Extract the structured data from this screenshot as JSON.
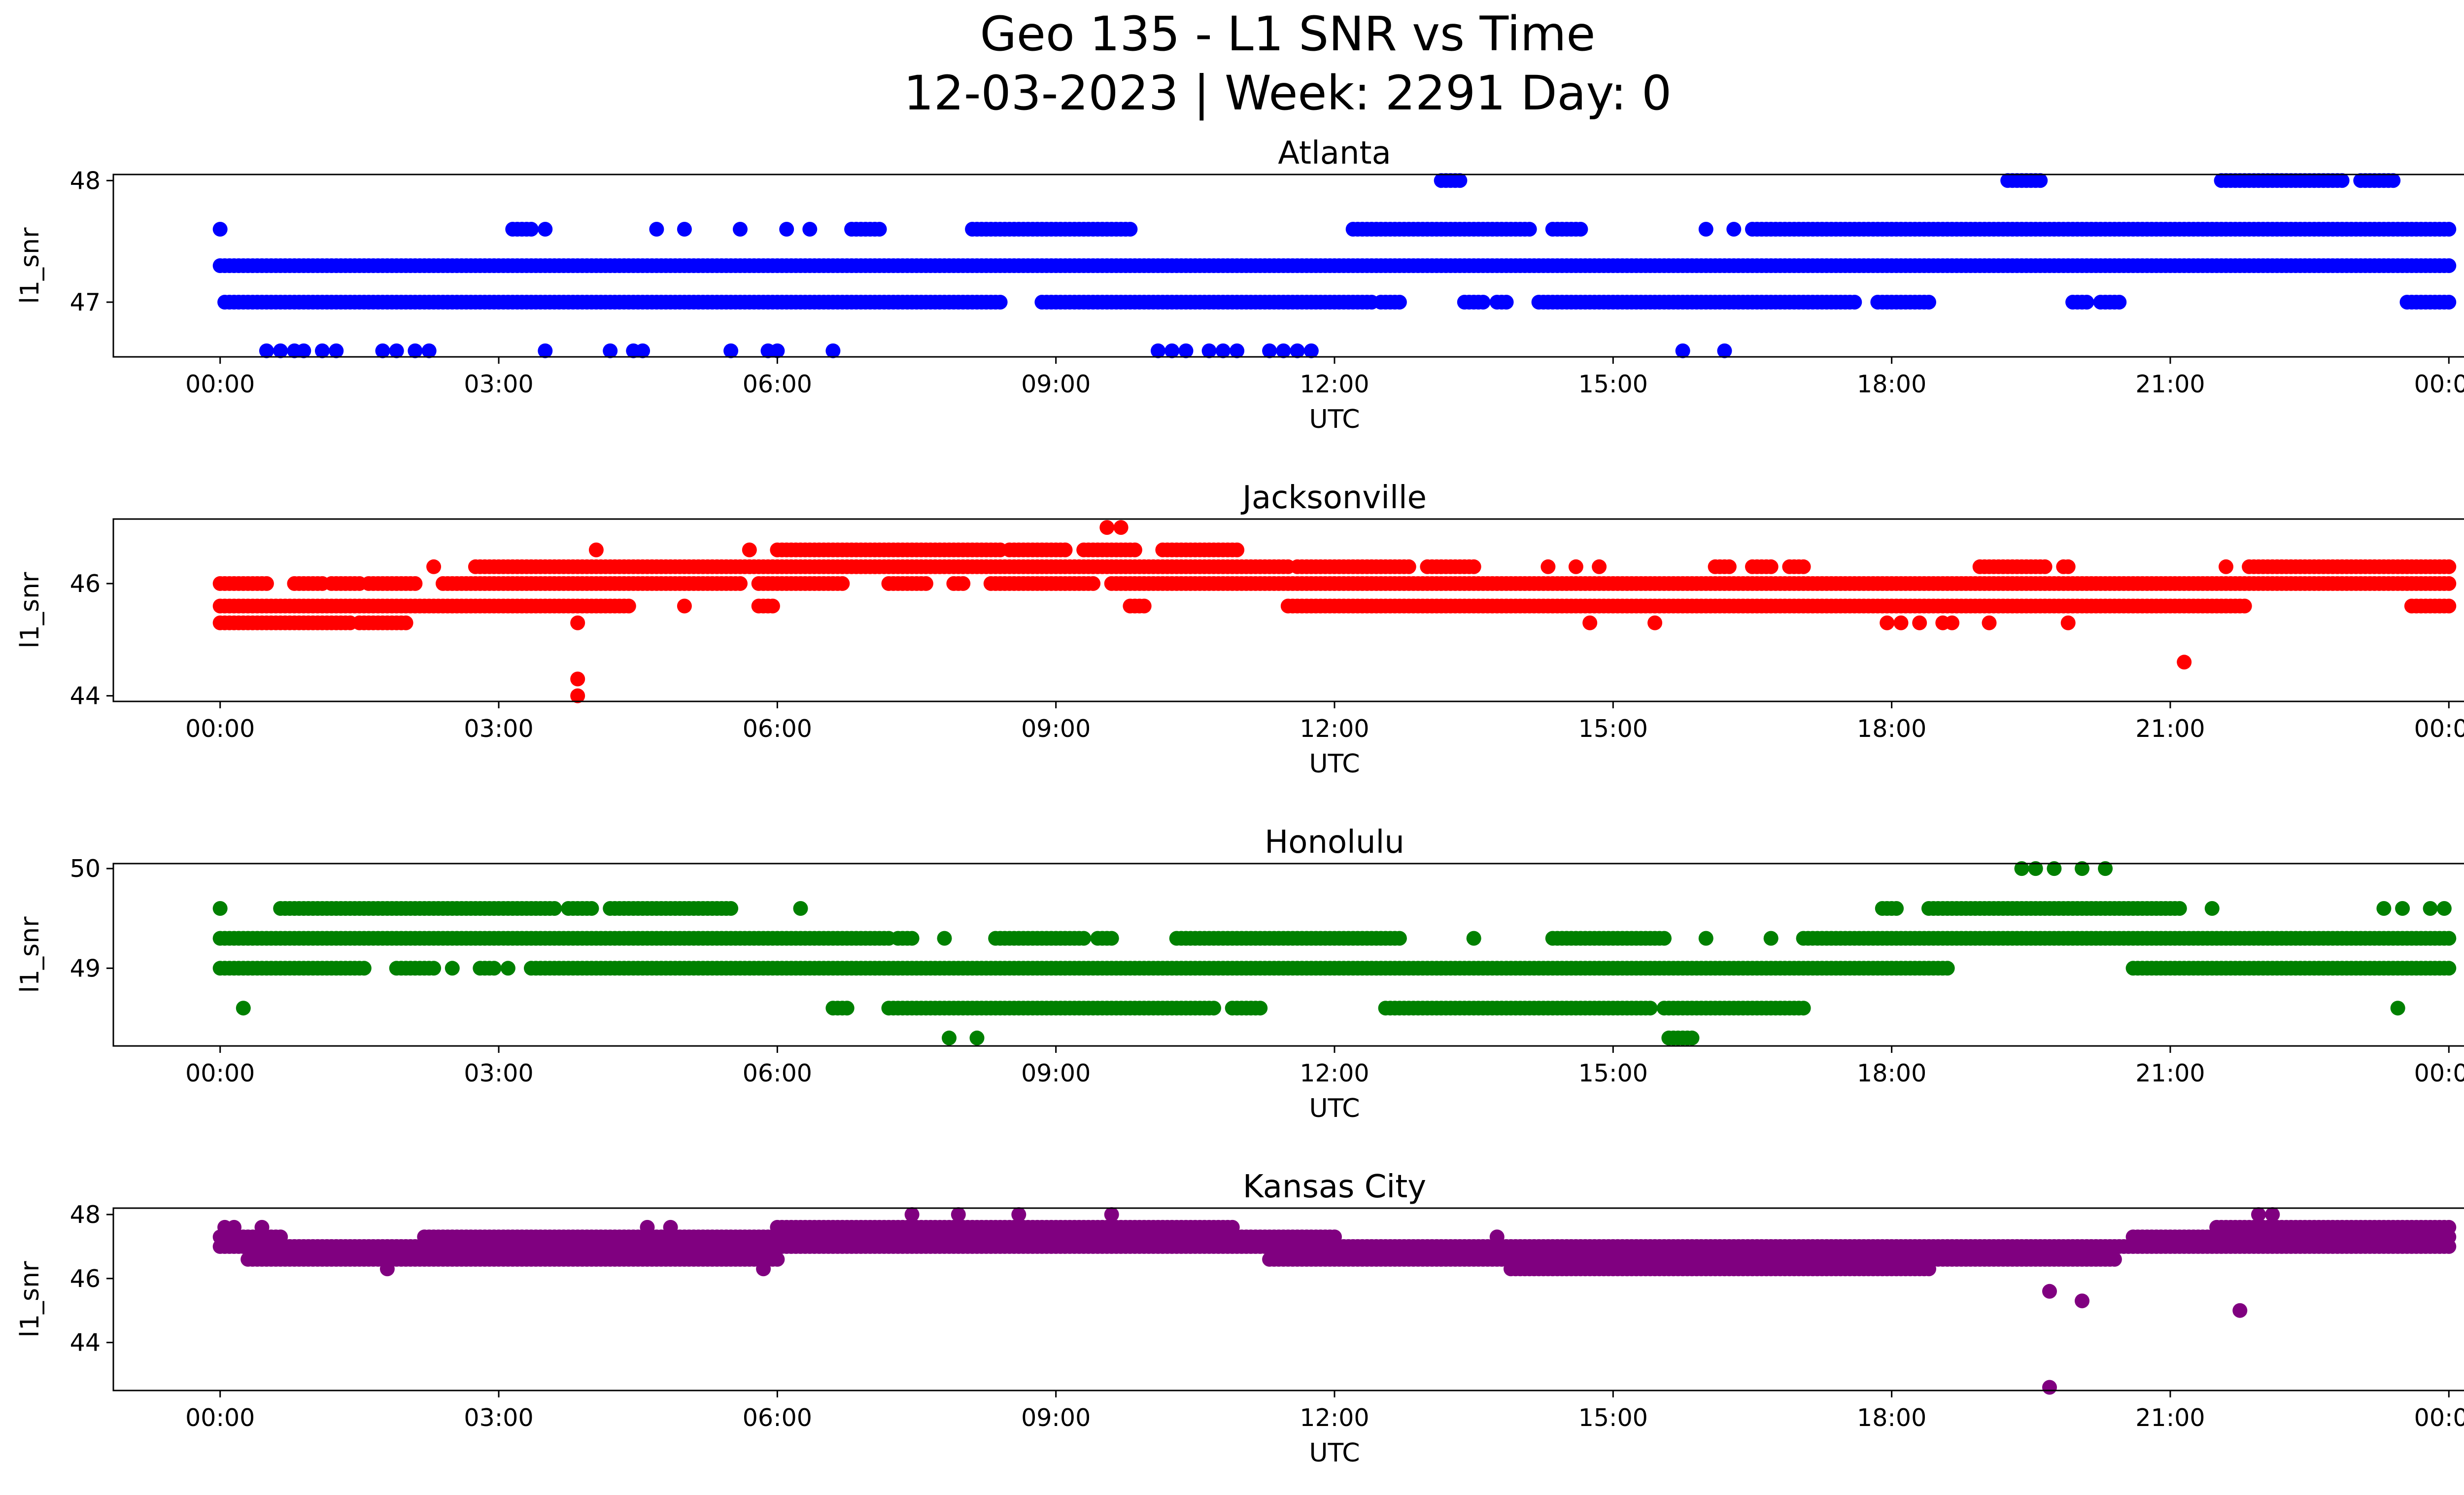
{
  "figure": {
    "title_line1": "Geo 135 - L1 SNR vs Time",
    "title_line2": "12-03-2023 | Week: 2291 Day: 0"
  },
  "chart_data": [
    {
      "type": "scatter",
      "title": "Atlanta",
      "xlabel": "UTC",
      "ylabel": "l1_snr",
      "color": "#0000ff",
      "xlim_hours": [
        -1.15,
        25.15
      ],
      "xticks": [
        "00:00",
        "03:00",
        "06:00",
        "09:00",
        "12:00",
        "15:00",
        "18:00",
        "21:00",
        "00:00"
      ],
      "ylim": [
        46.55,
        48.05
      ],
      "yticks": [
        47,
        48
      ],
      "segments": [
        {
          "y": 47.3,
          "from": 0.0,
          "to": 24.0
        },
        {
          "y": 47.0,
          "from": 0.05,
          "to": 8.4
        },
        {
          "y": 47.0,
          "from": 8.85,
          "to": 12.4
        },
        {
          "y": 47.0,
          "from": 12.5,
          "to": 12.7
        },
        {
          "y": 47.0,
          "from": 13.4,
          "to": 13.6
        },
        {
          "y": 47.0,
          "from": 13.75,
          "to": 13.85
        },
        {
          "y": 47.0,
          "from": 14.2,
          "to": 17.6
        },
        {
          "y": 47.0,
          "from": 17.85,
          "to": 18.4
        },
        {
          "y": 47.0,
          "from": 19.95,
          "to": 20.1
        },
        {
          "y": 47.0,
          "from": 20.25,
          "to": 20.45
        },
        {
          "y": 47.0,
          "from": 23.55,
          "to": 24.0
        },
        {
          "y": 47.6,
          "from": 3.15,
          "to": 3.35
        },
        {
          "y": 47.6,
          "from": 3.5,
          "to": 3.5
        },
        {
          "y": 47.6,
          "from": 4.7,
          "to": 4.7
        },
        {
          "y": 47.6,
          "from": 5.0,
          "to": 5.0
        },
        {
          "y": 47.6,
          "from": 5.6,
          "to": 5.6
        },
        {
          "y": 47.6,
          "from": 6.1,
          "to": 6.1
        },
        {
          "y": 47.6,
          "from": 6.35,
          "to": 6.35
        },
        {
          "y": 47.6,
          "from": 6.8,
          "to": 7.1
        },
        {
          "y": 47.6,
          "from": 8.1,
          "to": 9.8
        },
        {
          "y": 47.6,
          "from": 12.2,
          "to": 14.1
        },
        {
          "y": 47.6,
          "from": 14.35,
          "to": 14.65
        },
        {
          "y": 47.6,
          "from": 16.0,
          "to": 16.0
        },
        {
          "y": 47.6,
          "from": 16.3,
          "to": 16.3
        },
        {
          "y": 47.6,
          "from": 16.5,
          "to": 24.0
        },
        {
          "y": 48.0,
          "from": 13.15,
          "to": 13.35
        },
        {
          "y": 48.0,
          "from": 19.25,
          "to": 19.6
        },
        {
          "y": 48.0,
          "from": 21.55,
          "to": 22.85
        },
        {
          "y": 48.0,
          "from": 23.05,
          "to": 23.4
        }
      ],
      "points": [
        {
          "x": 0.0,
          "y": 47.6
        },
        {
          "x": 0.5,
          "y": 46.6
        },
        {
          "x": 0.65,
          "y": 46.6
        },
        {
          "x": 0.8,
          "y": 46.6
        },
        {
          "x": 0.9,
          "y": 46.6
        },
        {
          "x": 1.1,
          "y": 46.6
        },
        {
          "x": 1.25,
          "y": 46.6
        },
        {
          "x": 1.75,
          "y": 46.6
        },
        {
          "x": 1.9,
          "y": 46.6
        },
        {
          "x": 2.1,
          "y": 46.6
        },
        {
          "x": 2.25,
          "y": 46.6
        },
        {
          "x": 3.5,
          "y": 46.6
        },
        {
          "x": 4.2,
          "y": 46.6
        },
        {
          "x": 4.45,
          "y": 46.6
        },
        {
          "x": 4.55,
          "y": 46.6
        },
        {
          "x": 5.5,
          "y": 46.6
        },
        {
          "x": 5.9,
          "y": 46.6
        },
        {
          "x": 6.0,
          "y": 46.6
        },
        {
          "x": 6.6,
          "y": 46.6
        },
        {
          "x": 10.1,
          "y": 46.6
        },
        {
          "x": 10.25,
          "y": 46.6
        },
        {
          "x": 10.4,
          "y": 46.6
        },
        {
          "x": 10.65,
          "y": 46.6
        },
        {
          "x": 10.8,
          "y": 46.6
        },
        {
          "x": 10.95,
          "y": 46.6
        },
        {
          "x": 11.3,
          "y": 46.6
        },
        {
          "x": 11.45,
          "y": 46.6
        },
        {
          "x": 11.6,
          "y": 46.6
        },
        {
          "x": 11.75,
          "y": 46.6
        },
        {
          "x": 15.75,
          "y": 46.6
        },
        {
          "x": 16.2,
          "y": 46.6
        }
      ]
    },
    {
      "type": "scatter",
      "title": "Jacksonville",
      "xlabel": "UTC",
      "ylabel": "l1_snr",
      "color": "#ff0000",
      "xlim_hours": [
        -1.15,
        25.15
      ],
      "xticks": [
        "00:00",
        "03:00",
        "06:00",
        "09:00",
        "12:00",
        "15:00",
        "18:00",
        "21:00",
        "00:00"
      ],
      "ylim": [
        43.9,
        47.15
      ],
      "yticks": [
        44,
        46
      ],
      "segments": [
        {
          "y": 45.6,
          "from": 0.0,
          "to": 4.4
        },
        {
          "y": 45.6,
          "from": 5.0,
          "to": 5.0
        },
        {
          "y": 45.6,
          "from": 5.8,
          "to": 5.95
        },
        {
          "y": 45.6,
          "from": 9.8,
          "to": 9.95
        },
        {
          "y": 45.6,
          "from": 11.5,
          "to": 21.8
        },
        {
          "y": 45.6,
          "from": 23.6,
          "to": 24.0
        },
        {
          "y": 45.3,
          "from": 0.0,
          "to": 1.4
        },
        {
          "y": 45.3,
          "from": 1.5,
          "to": 2.0
        },
        {
          "y": 46.0,
          "from": 0.0,
          "to": 0.5
        },
        {
          "y": 46.0,
          "from": 0.8,
          "to": 1.1
        },
        {
          "y": 46.0,
          "from": 1.2,
          "to": 1.5
        },
        {
          "y": 46.0,
          "from": 1.6,
          "to": 2.1
        },
        {
          "y": 46.0,
          "from": 2.4,
          "to": 5.6
        },
        {
          "y": 46.0,
          "from": 5.8,
          "to": 6.7
        },
        {
          "y": 46.0,
          "from": 7.2,
          "to": 7.6
        },
        {
          "y": 46.0,
          "from": 7.9,
          "to": 8.0
        },
        {
          "y": 46.0,
          "from": 8.3,
          "to": 9.4
        },
        {
          "y": 46.0,
          "from": 9.6,
          "to": 24.0
        },
        {
          "y": 46.3,
          "from": 2.3,
          "to": 2.3
        },
        {
          "y": 46.3,
          "from": 2.75,
          "to": 3.95
        },
        {
          "y": 46.3,
          "from": 4.0,
          "to": 11.5
        },
        {
          "y": 46.3,
          "from": 11.6,
          "to": 12.8
        },
        {
          "y": 46.3,
          "from": 13.0,
          "to": 13.5
        },
        {
          "y": 46.3,
          "from": 14.3,
          "to": 14.3
        },
        {
          "y": 46.3,
          "from": 14.6,
          "to": 14.6
        },
        {
          "y": 46.3,
          "from": 14.85,
          "to": 14.85
        },
        {
          "y": 46.3,
          "from": 16.1,
          "to": 16.25
        },
        {
          "y": 46.3,
          "from": 16.5,
          "to": 16.7
        },
        {
          "y": 46.3,
          "from": 16.9,
          "to": 17.05
        },
        {
          "y": 46.3,
          "from": 18.95,
          "to": 19.65
        },
        {
          "y": 46.3,
          "from": 19.85,
          "to": 19.9
        },
        {
          "y": 46.3,
          "from": 21.6,
          "to": 21.6
        },
        {
          "y": 46.3,
          "from": 21.85,
          "to": 24.0
        },
        {
          "y": 46.6,
          "from": 4.05,
          "to": 4.05
        },
        {
          "y": 46.6,
          "from": 5.7,
          "to": 5.7
        },
        {
          "y": 46.6,
          "from": 6.0,
          "to": 8.4
        },
        {
          "y": 46.6,
          "from": 8.5,
          "to": 9.1
        },
        {
          "y": 46.6,
          "from": 9.3,
          "to": 9.85
        },
        {
          "y": 46.6,
          "from": 10.15,
          "to": 10.95
        }
      ],
      "points": [
        {
          "x": 3.85,
          "y": 45.3
        },
        {
          "x": 3.85,
          "y": 44.3
        },
        {
          "x": 3.85,
          "y": 44.0
        },
        {
          "x": 9.55,
          "y": 47.0
        },
        {
          "x": 9.7,
          "y": 47.0
        },
        {
          "x": 14.75,
          "y": 45.3
        },
        {
          "x": 15.45,
          "y": 45.3
        },
        {
          "x": 17.95,
          "y": 45.3
        },
        {
          "x": 18.1,
          "y": 45.3
        },
        {
          "x": 18.3,
          "y": 45.3
        },
        {
          "x": 18.55,
          "y": 45.3
        },
        {
          "x": 18.65,
          "y": 45.3
        },
        {
          "x": 19.05,
          "y": 45.3
        },
        {
          "x": 19.9,
          "y": 45.3
        },
        {
          "x": 21.15,
          "y": 44.6
        }
      ]
    },
    {
      "type": "scatter",
      "title": "Honolulu",
      "xlabel": "UTC",
      "ylabel": "l1_snr",
      "color": "#008000",
      "xlim_hours": [
        -1.15,
        25.15
      ],
      "xticks": [
        "00:00",
        "03:00",
        "06:00",
        "09:00",
        "12:00",
        "15:00",
        "18:00",
        "21:00",
        "00:00"
      ],
      "ylim": [
        48.22,
        50.05
      ],
      "yticks": [
        49,
        50
      ],
      "segments": [
        {
          "y": 49.3,
          "from": 0.0,
          "to": 7.2
        },
        {
          "y": 49.3,
          "from": 7.3,
          "to": 7.45
        },
        {
          "y": 49.3,
          "from": 8.35,
          "to": 9.3
        },
        {
          "y": 49.3,
          "from": 9.45,
          "to": 9.6
        },
        {
          "y": 49.3,
          "from": 10.3,
          "to": 12.7
        },
        {
          "y": 49.3,
          "from": 14.35,
          "to": 15.55
        },
        {
          "y": 49.3,
          "from": 17.05,
          "to": 24.0
        },
        {
          "y": 49.0,
          "from": 0.0,
          "to": 1.55
        },
        {
          "y": 49.0,
          "from": 1.9,
          "to": 2.3
        },
        {
          "y": 49.0,
          "from": 2.8,
          "to": 2.95
        },
        {
          "y": 49.0,
          "from": 3.35,
          "to": 18.6
        },
        {
          "y": 49.0,
          "from": 20.6,
          "to": 24.0
        },
        {
          "y": 48.6,
          "from": 6.6,
          "to": 6.75
        },
        {
          "y": 48.6,
          "from": 7.2,
          "to": 10.7
        },
        {
          "y": 48.6,
          "from": 10.9,
          "to": 11.2
        },
        {
          "y": 48.6,
          "from": 12.55,
          "to": 15.4
        },
        {
          "y": 48.6,
          "from": 15.55,
          "to": 17.05
        },
        {
          "y": 49.6,
          "from": 0.65,
          "to": 3.6
        },
        {
          "y": 49.6,
          "from": 3.75,
          "to": 4.0
        },
        {
          "y": 49.6,
          "from": 4.2,
          "to": 5.5
        },
        {
          "y": 49.6,
          "from": 17.9,
          "to": 18.05
        },
        {
          "y": 49.6,
          "from": 18.4,
          "to": 21.1
        },
        {
          "y": 48.3,
          "from": 15.6,
          "to": 15.85
        }
      ],
      "points": [
        {
          "x": 0.0,
          "y": 49.6
        },
        {
          "x": 0.25,
          "y": 48.6
        },
        {
          "x": 2.5,
          "y": 49.0
        },
        {
          "x": 3.1,
          "y": 49.0
        },
        {
          "x": 6.25,
          "y": 49.6
        },
        {
          "x": 7.85,
          "y": 48.3
        },
        {
          "x": 8.15,
          "y": 48.3
        },
        {
          "x": 7.8,
          "y": 49.3
        },
        {
          "x": 13.5,
          "y": 49.3
        },
        {
          "x": 16.0,
          "y": 49.3
        },
        {
          "x": 16.7,
          "y": 49.3
        },
        {
          "x": 19.4,
          "y": 50.0
        },
        {
          "x": 19.55,
          "y": 50.0
        },
        {
          "x": 19.75,
          "y": 50.0
        },
        {
          "x": 20.05,
          "y": 50.0
        },
        {
          "x": 20.3,
          "y": 50.0
        },
        {
          "x": 21.45,
          "y": 49.6
        },
        {
          "x": 23.3,
          "y": 49.6
        },
        {
          "x": 23.5,
          "y": 49.6
        },
        {
          "x": 23.8,
          "y": 49.6
        },
        {
          "x": 23.95,
          "y": 49.6
        },
        {
          "x": 23.45,
          "y": 48.6
        }
      ]
    },
    {
      "type": "scatter",
      "title": "Kansas City",
      "xlabel": "UTC",
      "ylabel": "l1_snr",
      "color": "#800080",
      "xlim_hours": [
        -1.15,
        25.15
      ],
      "xticks": [
        "00:00",
        "03:00",
        "06:00",
        "09:00",
        "12:00",
        "15:00",
        "18:00",
        "21:00",
        "00:00"
      ],
      "ylim": [
        42.5,
        48.2
      ],
      "yticks": [
        44,
        46,
        48
      ],
      "segments": [
        {
          "y": 47.0,
          "from": 0.0,
          "to": 24.0
        },
        {
          "y": 46.6,
          "from": 0.3,
          "to": 6.0
        },
        {
          "y": 46.6,
          "from": 11.3,
          "to": 20.4
        },
        {
          "y": 47.3,
          "from": 0.0,
          "to": 0.65
        },
        {
          "y": 47.3,
          "from": 2.2,
          "to": 12.0
        },
        {
          "y": 47.3,
          "from": 20.6,
          "to": 24.0
        },
        {
          "y": 47.6,
          "from": 6.0,
          "to": 10.9
        },
        {
          "y": 47.6,
          "from": 21.5,
          "to": 24.0
        },
        {
          "y": 46.3,
          "from": 13.9,
          "to": 18.4
        }
      ],
      "points": [
        {
          "x": 0.05,
          "y": 47.6
        },
        {
          "x": 0.15,
          "y": 47.6
        },
        {
          "x": 0.45,
          "y": 47.6
        },
        {
          "x": 4.6,
          "y": 47.6
        },
        {
          "x": 4.85,
          "y": 47.6
        },
        {
          "x": 7.45,
          "y": 48.0
        },
        {
          "x": 7.95,
          "y": 48.0
        },
        {
          "x": 8.6,
          "y": 48.0
        },
        {
          "x": 9.6,
          "y": 48.0
        },
        {
          "x": 1.8,
          "y": 46.3
        },
        {
          "x": 5.85,
          "y": 46.3
        },
        {
          "x": 13.75,
          "y": 47.3
        },
        {
          "x": 19.7,
          "y": 45.6
        },
        {
          "x": 20.05,
          "y": 45.3
        },
        {
          "x": 21.75,
          "y": 45.0
        },
        {
          "x": 19.7,
          "y": 42.6
        },
        {
          "x": 21.95,
          "y": 48.0
        },
        {
          "x": 22.1,
          "y": 48.0
        }
      ]
    }
  ]
}
